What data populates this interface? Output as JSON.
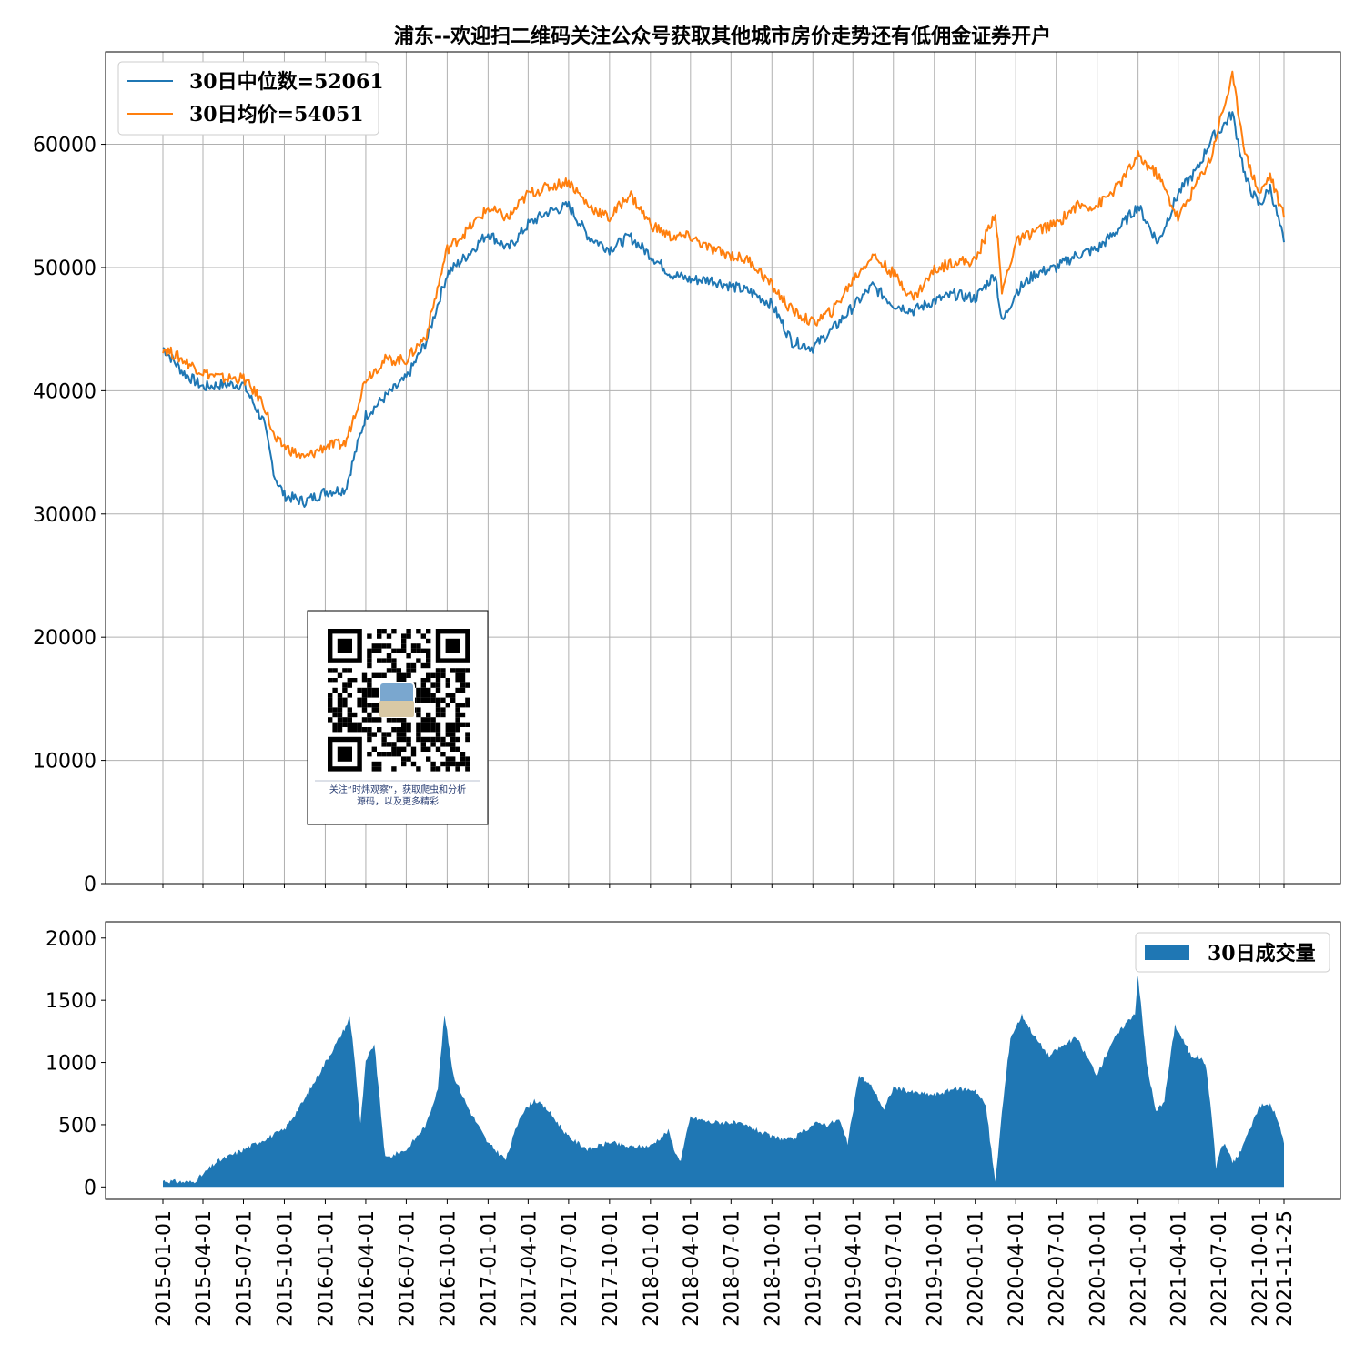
{
  "chart_data": [
    {
      "type": "line",
      "title": "浦东--欢迎扫二维码关注公众号获取其他城市房价走势还有低佣金证券开户",
      "ylim": [
        0,
        67500
      ],
      "yticks": [
        0,
        10000,
        20000,
        30000,
        40000,
        50000,
        60000
      ],
      "grid": true,
      "legend_position": "top-left",
      "x_dates": [
        "2015-01-01",
        "2015-02-15",
        "2015-04-01",
        "2015-05-15",
        "2015-07-01",
        "2015-08-15",
        "2015-09-10",
        "2015-10-01",
        "2015-11-15",
        "2016-01-01",
        "2016-02-15",
        "2016-04-01",
        "2016-05-15",
        "2016-07-01",
        "2016-08-15",
        "2016-10-01",
        "2016-11-15",
        "2017-01-01",
        "2017-02-15",
        "2017-04-01",
        "2017-05-15",
        "2017-07-01",
        "2017-08-15",
        "2017-10-01",
        "2017-11-15",
        "2018-01-01",
        "2018-02-15",
        "2018-04-01",
        "2018-05-15",
        "2018-07-01",
        "2018-08-15",
        "2018-10-01",
        "2018-11-15",
        "2019-01-01",
        "2019-02-15",
        "2019-04-01",
        "2019-05-15",
        "2019-07-01",
        "2019-08-15",
        "2019-10-01",
        "2019-11-15",
        "2020-01-01",
        "2020-02-15",
        "2020-03-01",
        "2020-04-01",
        "2020-05-15",
        "2020-07-01",
        "2020-08-15",
        "2020-10-01",
        "2020-11-15",
        "2021-01-01",
        "2021-02-15",
        "2021-04-01",
        "2021-05-15",
        "2021-06-15",
        "2021-07-01",
        "2021-08-01",
        "2021-09-01",
        "2021-10-01",
        "2021-10-25",
        "2021-11-25"
      ],
      "series": [
        {
          "name": "30日中位数=52061",
          "color": "#1f77b4",
          "values": [
            43500,
            41500,
            40300,
            40500,
            40500,
            37500,
            33000,
            31500,
            31000,
            31800,
            32000,
            38000,
            39500,
            41000,
            44000,
            49500,
            51000,
            52800,
            51500,
            53500,
            54500,
            55000,
            52500,
            51500,
            52500,
            51000,
            49500,
            49000,
            49000,
            48500,
            48000,
            47000,
            44000,
            43500,
            45000,
            46800,
            48500,
            47000,
            46500,
            47300,
            47800,
            47500,
            49500,
            45500,
            48000,
            49500,
            50000,
            51000,
            51500,
            53000,
            55000,
            52000,
            56000,
            58000,
            60500,
            61000,
            62500,
            57000,
            55000,
            56500,
            52061
          ]
        },
        {
          "name": "30日均价=54051",
          "color": "#ff7f0e",
          "values": [
            43500,
            42500,
            41500,
            41000,
            41000,
            39000,
            36000,
            35500,
            34500,
            35500,
            35700,
            41000,
            42500,
            42500,
            44500,
            51500,
            53000,
            54800,
            54000,
            56000,
            56500,
            57000,
            55000,
            54000,
            56000,
            53500,
            52500,
            52500,
            51500,
            51000,
            50500,
            48500,
            46500,
            45500,
            46500,
            49000,
            51000,
            49500,
            47500,
            49800,
            50500,
            50500,
            54500,
            48000,
            52000,
            53000,
            53500,
            55000,
            55000,
            56500,
            59000,
            57500,
            54000,
            57000,
            59000,
            61500,
            65500,
            59000,
            56000,
            57500,
            54051
          ]
        }
      ]
    },
    {
      "type": "area",
      "ylim": [
        -100,
        2130
      ],
      "yticks": [
        0,
        500,
        1000,
        1500,
        2000
      ],
      "grid": false,
      "legend_position": "top-right",
      "x_ticks": [
        "2015-01-01",
        "2015-04-01",
        "2015-07-01",
        "2015-10-01",
        "2016-01-01",
        "2016-04-01",
        "2016-07-01",
        "2016-10-01",
        "2017-01-01",
        "2017-04-01",
        "2017-07-01",
        "2017-10-01",
        "2018-01-01",
        "2018-04-01",
        "2018-07-01",
        "2018-10-01",
        "2019-01-01",
        "2019-04-01",
        "2019-07-01",
        "2019-10-01",
        "2020-01-01",
        "2020-04-01",
        "2020-07-01",
        "2020-10-01",
        "2021-01-01",
        "2021-04-01",
        "2021-07-01",
        "2021-10-01",
        "2021-11-25"
      ],
      "x_dates": [
        "2015-01-01",
        "2015-02-15",
        "2015-03-10",
        "2015-04-01",
        "2015-05-01",
        "2015-07-01",
        "2015-08-15",
        "2015-10-01",
        "2015-11-15",
        "2016-01-01",
        "2016-02-10",
        "2016-02-25",
        "2016-03-05",
        "2016-03-20",
        "2016-04-01",
        "2016-04-20",
        "2016-05-15",
        "2016-07-01",
        "2016-08-15",
        "2016-09-10",
        "2016-09-25",
        "2016-10-15",
        "2016-11-15",
        "2017-01-01",
        "2017-02-10",
        "2017-03-15",
        "2017-04-15",
        "2017-05-15",
        "2017-07-01",
        "2017-08-15",
        "2017-10-01",
        "2017-11-15",
        "2018-01-01",
        "2018-02-10",
        "2018-03-01",
        "2018-03-10",
        "2018-04-01",
        "2018-05-15",
        "2018-07-01",
        "2018-08-15",
        "2018-10-01",
        "2018-11-15",
        "2019-01-01",
        "2019-01-20",
        "2019-02-01",
        "2019-03-01",
        "2019-03-20",
        "2019-04-15",
        "2019-05-15",
        "2019-06-10",
        "2019-07-01",
        "2019-08-15",
        "2019-10-01",
        "2019-11-15",
        "2020-01-01",
        "2020-01-25",
        "2020-02-15",
        "2020-03-01",
        "2020-03-20",
        "2020-04-15",
        "2020-05-15",
        "2020-06-15",
        "2020-07-01",
        "2020-08-15",
        "2020-09-15",
        "2020-10-01",
        "2020-11-01",
        "2020-12-01",
        "2020-12-25",
        "2021-01-01",
        "2021-01-20",
        "2021-02-10",
        "2021-03-01",
        "2021-03-25",
        "2021-05-01",
        "2021-05-15",
        "2021-06-01",
        "2021-06-15",
        "2021-06-25",
        "2021-07-05",
        "2021-07-15",
        "2021-08-01",
        "2021-08-15",
        "2021-09-01",
        "2021-10-01",
        "2021-10-25",
        "2021-11-10",
        "2021-11-25"
      ],
      "series": [
        {
          "name": "30日成交量",
          "color": "#1f77b4",
          "values": [
            50,
            40,
            40,
            100,
            200,
            300,
            380,
            460,
            700,
            1000,
            1250,
            1360,
            1100,
            500,
            1000,
            1150,
            230,
            300,
            500,
            800,
            1380,
            900,
            650,
            350,
            220,
            580,
            700,
            620,
            400,
            300,
            360,
            320,
            330,
            450,
            250,
            220,
            560,
            520,
            520,
            480,
            400,
            380,
            500,
            520,
            500,
            540,
            350,
            900,
            800,
            620,
            800,
            760,
            740,
            790,
            780,
            650,
            30,
            600,
            1200,
            1380,
            1200,
            1050,
            1100,
            1200,
            1000,
            900,
            1150,
            1300,
            1400,
            1700,
            1000,
            600,
            700,
            1300,
            1050,
            1050,
            1000,
            600,
            160,
            300,
            350,
            200,
            250,
            400,
            650,
            660,
            550,
            350
          ]
        }
      ]
    }
  ],
  "qr": {
    "caption_line1": "关注“时炜观察”，获取爬虫和分析",
    "caption_line2": "源码，以及更多精彩"
  }
}
